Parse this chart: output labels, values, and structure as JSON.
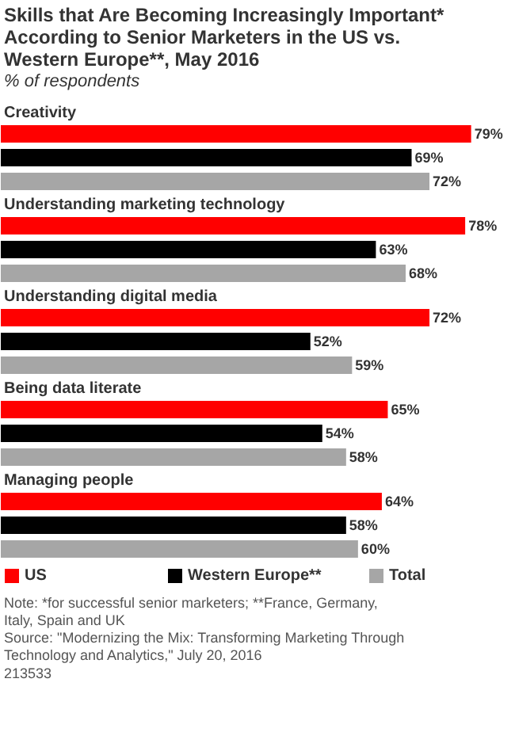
{
  "chart_data": {
    "type": "bar",
    "orientation": "horizontal",
    "title": "Skills that Are Becoming Increasingly Important* According to Senior Marketers in the US vs. Western Europe**, May 2016",
    "subtitle": "% of respondents",
    "categories": [
      "Creativity",
      "Understanding marketing technology",
      "Understanding digital media",
      "Being data literate",
      "Managing people"
    ],
    "series": [
      {
        "name": "US",
        "color": "#ff0000",
        "values": [
          79,
          78,
          72,
          65,
          64
        ],
        "value_labels": [
          "79%",
          "78%",
          "72%",
          "65%",
          "64%"
        ]
      },
      {
        "name": "Western Europe**",
        "color": "#000000",
        "values": [
          69,
          63,
          52,
          54,
          58
        ],
        "value_labels": [
          "69%",
          "63%",
          "52%",
          "54%",
          "58%"
        ]
      },
      {
        "name": "Total",
        "color": "#a6a6a6",
        "values": [
          72,
          68,
          59,
          58,
          60
        ],
        "value_labels": [
          "72%",
          "68%",
          "59%",
          "58%",
          "60%"
        ]
      }
    ],
    "xlim": [
      0,
      86.5
    ],
    "legend": "bottom",
    "annotations": [
      "Note: *for successful senior marketers; **France, Germany, Italy, Spain and UK",
      "Source: \"Modernizing the Mix: Transforming Marketing Through Technology and Analytics,\" July 20, 2016",
      "213533"
    ]
  }
}
